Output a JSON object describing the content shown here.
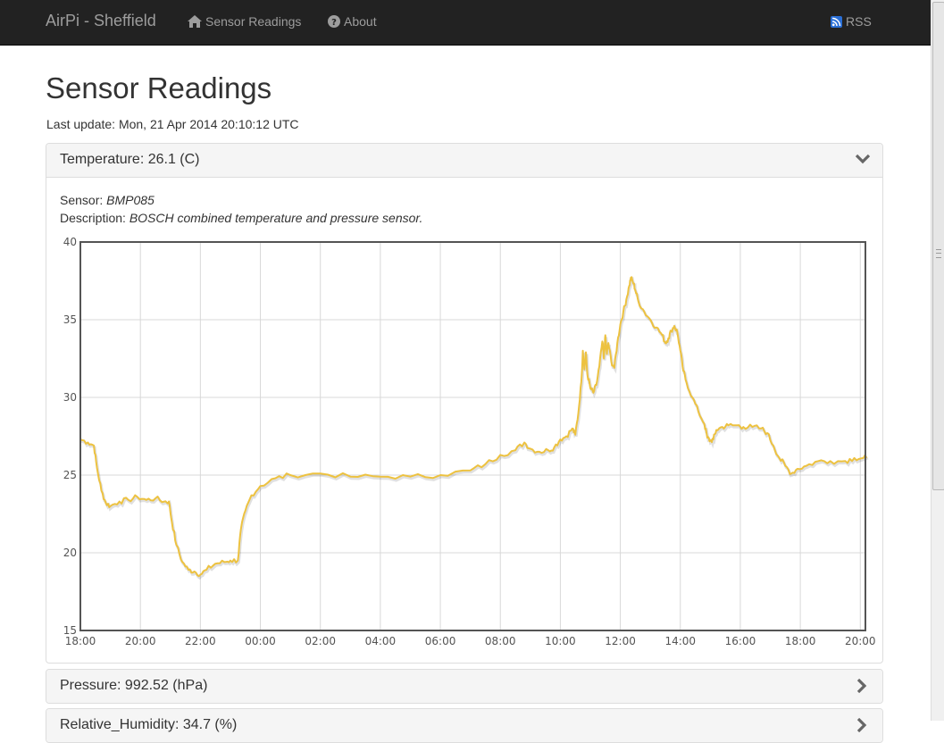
{
  "navbar": {
    "brand": "AirPi - Sheffield",
    "links": [
      {
        "label": "Sensor Readings",
        "icon": "home-icon"
      },
      {
        "label": "About",
        "icon": "question-circle-icon"
      }
    ],
    "rss": {
      "label": "RSS",
      "icon": "rss-icon"
    }
  },
  "page": {
    "title": "Sensor Readings",
    "last_update": "Last update: Mon, 21 Apr 2014 20:10:12 UTC"
  },
  "panels": [
    {
      "title": "Temperature: 26.1 (C)",
      "expanded": true,
      "sensor_label": "Sensor:",
      "sensor_value": "BMP085",
      "description_label": "Description:",
      "description_value": "BOSCH combined temperature and pressure sensor."
    },
    {
      "title": "Pressure: 992.52 (hPa)",
      "expanded": false
    },
    {
      "title": "Relative_Humidity: 34.7 (%)",
      "expanded": false
    }
  ],
  "colors": {
    "series": "#edc240",
    "navbar": "#222222",
    "grid": "#d8d8d8"
  },
  "chart_data": {
    "type": "line",
    "title": "",
    "xlabel": "",
    "ylabel": "",
    "xlim": [
      "18:00",
      "20:10"
    ],
    "ylim": [
      15,
      40
    ],
    "x_ticks": [
      "18:00",
      "20:00",
      "22:00",
      "00:00",
      "02:00",
      "04:00",
      "06:00",
      "08:00",
      "10:00",
      "12:00",
      "14:00",
      "16:00",
      "18:00",
      "20:00"
    ],
    "y_ticks": [
      15,
      20,
      25,
      30,
      35,
      40
    ],
    "grid": true,
    "series": [
      {
        "values": [
          [
            0,
            27.3
          ],
          [
            0.25,
            27.1
          ],
          [
            0.45,
            26.9
          ],
          [
            0.55,
            25.5
          ],
          [
            0.7,
            24.0
          ],
          [
            0.85,
            23.2
          ],
          [
            1.0,
            23.0
          ],
          [
            1.3,
            23.3
          ],
          [
            1.6,
            23.4
          ],
          [
            1.9,
            23.6
          ],
          [
            2.2,
            23.4
          ],
          [
            2.5,
            23.5
          ],
          [
            2.8,
            23.3
          ],
          [
            2.95,
            23.3
          ],
          [
            3.05,
            22.0
          ],
          [
            3.2,
            20.5
          ],
          [
            3.4,
            19.4
          ],
          [
            3.6,
            18.9
          ],
          [
            3.8,
            18.8
          ],
          [
            4.0,
            18.6
          ],
          [
            4.2,
            18.9
          ],
          [
            4.5,
            19.3
          ],
          [
            4.8,
            19.4
          ],
          [
            5.0,
            19.5
          ],
          [
            5.25,
            19.5
          ],
          [
            5.35,
            21.5
          ],
          [
            5.5,
            22.7
          ],
          [
            5.7,
            23.7
          ],
          [
            6.0,
            24.3
          ],
          [
            6.5,
            24.8
          ],
          [
            7.0,
            25.0
          ],
          [
            8.0,
            25.1
          ],
          [
            9.0,
            24.9
          ],
          [
            10.0,
            24.9
          ],
          [
            11.0,
            24.9
          ],
          [
            12.0,
            25.0
          ],
          [
            13.0,
            25.3
          ],
          [
            13.5,
            25.7
          ],
          [
            14.0,
            26.3
          ],
          [
            14.5,
            26.6
          ],
          [
            14.8,
            27.1
          ],
          [
            15.0,
            26.7
          ],
          [
            15.3,
            26.5
          ],
          [
            15.6,
            26.6
          ],
          [
            15.8,
            26.8
          ],
          [
            16.0,
            27.3
          ],
          [
            16.2,
            27.5
          ],
          [
            16.4,
            28.0
          ],
          [
            16.5,
            27.6
          ],
          [
            16.6,
            29.0
          ],
          [
            16.7,
            31.0
          ],
          [
            16.75,
            33.0
          ],
          [
            16.8,
            31.8
          ],
          [
            16.85,
            32.9
          ],
          [
            16.9,
            31.5
          ],
          [
            17.0,
            30.6
          ],
          [
            17.1,
            30.3
          ],
          [
            17.2,
            30.8
          ],
          [
            17.3,
            32.0
          ],
          [
            17.4,
            33.6
          ],
          [
            17.45,
            32.5
          ],
          [
            17.5,
            34.0
          ],
          [
            17.55,
            32.8
          ],
          [
            17.6,
            33.5
          ],
          [
            17.7,
            32.3
          ],
          [
            17.8,
            31.9
          ],
          [
            17.9,
            33.5
          ],
          [
            18.0,
            34.7
          ],
          [
            18.1,
            35.5
          ],
          [
            18.2,
            36.3
          ],
          [
            18.3,
            37.2
          ],
          [
            18.35,
            37.7
          ],
          [
            18.45,
            37.3
          ],
          [
            18.5,
            36.9
          ],
          [
            18.6,
            36.2
          ],
          [
            18.8,
            35.5
          ],
          [
            19.0,
            35.0
          ],
          [
            19.2,
            34.5
          ],
          [
            19.4,
            34.0
          ],
          [
            19.5,
            33.5
          ],
          [
            19.6,
            33.8
          ],
          [
            19.7,
            34.3
          ],
          [
            19.8,
            34.6
          ],
          [
            19.9,
            34.2
          ],
          [
            20.0,
            33.0
          ],
          [
            20.1,
            31.7
          ],
          [
            20.2,
            31.0
          ],
          [
            20.4,
            30.0
          ],
          [
            20.6,
            29.1
          ],
          [
            20.8,
            28.3
          ],
          [
            20.9,
            27.4
          ],
          [
            21.0,
            27.2
          ],
          [
            21.1,
            27.3
          ],
          [
            21.2,
            27.9
          ],
          [
            21.4,
            28.1
          ],
          [
            21.6,
            28.2
          ],
          [
            21.9,
            28.2
          ],
          [
            22.1,
            28.1
          ],
          [
            22.4,
            28.1
          ],
          [
            22.7,
            28.0
          ],
          [
            22.9,
            27.7
          ],
          [
            23.1,
            26.9
          ],
          [
            23.3,
            26.1
          ],
          [
            23.5,
            25.6
          ],
          [
            23.7,
            25.1
          ],
          [
            23.9,
            25.4
          ],
          [
            24.2,
            25.6
          ],
          [
            24.6,
            25.9
          ],
          [
            25.0,
            25.9
          ],
          [
            25.5,
            25.9
          ],
          [
            25.8,
            26.1
          ],
          [
            26.1,
            26.1
          ],
          [
            26.2,
            26.1
          ]
        ]
      }
    ]
  }
}
